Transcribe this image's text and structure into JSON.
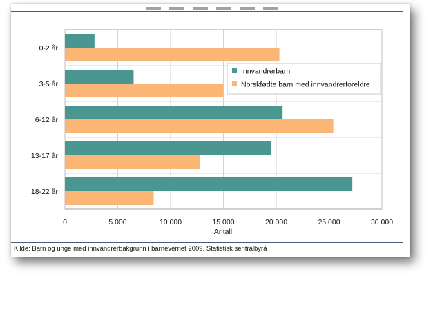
{
  "chart_data": {
    "type": "bar",
    "orientation": "horizontal",
    "categories": [
      "0-2 år",
      "3-5 år",
      "6-12 år",
      "13-17 år",
      "18-22 år"
    ],
    "series": [
      {
        "name": "Innvandrerbarn",
        "color": "#4a9690",
        "values": [
          2800,
          6500,
          20600,
          19500,
          27200
        ]
      },
      {
        "name": "Norskfødte barn med innvandrerforeldre",
        "color": "#fbb676",
        "values": [
          20300,
          15000,
          25400,
          12800,
          8400
        ]
      }
    ],
    "xlabel": "Antall",
    "xlim": [
      0,
      30000
    ],
    "xticks": [
      0,
      5000,
      10000,
      15000,
      20000,
      25000,
      30000
    ],
    "xtick_labels": [
      "0",
      "5 000",
      "10 000",
      "15 000",
      "20 000",
      "25 000",
      "30 000"
    ],
    "grid": true,
    "legend_position": "right-upper-middle"
  },
  "source": "Kilde: Barn og unge med innvandrerbakgrunn i barnevernet 2009. Statistisk sentralbyrå"
}
